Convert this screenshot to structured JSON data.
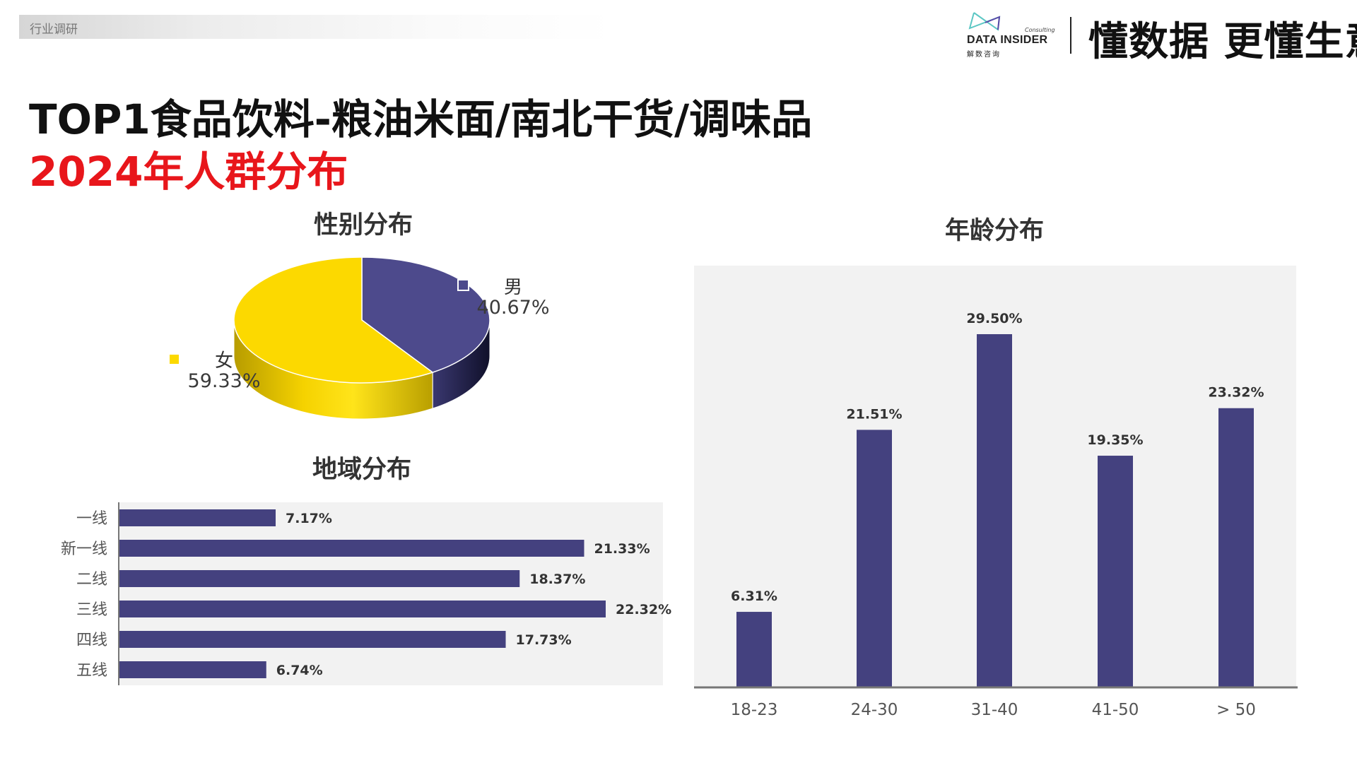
{
  "header": {
    "tag": "行业调研",
    "logo": {
      "name": "DATA INSIDER",
      "sub": "Consulting",
      "cn": "解数咨询"
    },
    "slogan": "懂数据 更懂生意"
  },
  "title": {
    "line1": "TOP1食品饮料-粮油米面/南北干货/调味品",
    "line2": "2024年人群分布"
  },
  "colors": {
    "navy": "#44417f",
    "yellow": "#fcd900",
    "title_red": "#e8161b",
    "panel": "#f2f2f2"
  },
  "chart_data": [
    {
      "type": "pie",
      "title": "性别分布",
      "style": "3d",
      "slices": [
        {
          "label": "男",
          "value": 40.67,
          "display": "40.67%",
          "color": "#4d4a8c"
        },
        {
          "label": "女",
          "value": 59.33,
          "display": "59.33%",
          "color": "#fcd900"
        }
      ]
    },
    {
      "type": "bar",
      "orientation": "horizontal",
      "title": "地域分布",
      "categories": [
        "一线",
        "新一线",
        "二线",
        "三线",
        "四线",
        "五线"
      ],
      "values": [
        7.17,
        21.33,
        18.37,
        22.32,
        17.73,
        6.74
      ],
      "labels": [
        "7.17%",
        "21.33%",
        "18.37%",
        "22.32%",
        "17.73%",
        "6.74%"
      ],
      "unit": "%",
      "color": "#44417f"
    },
    {
      "type": "bar",
      "orientation": "vertical",
      "title": "年龄分布",
      "categories": [
        "18-23",
        "24-30",
        "31-40",
        "41-50",
        "> 50"
      ],
      "values": [
        6.31,
        21.51,
        29.5,
        19.35,
        23.32
      ],
      "labels": [
        "6.31%",
        "21.51%",
        "29.50%",
        "19.35%",
        "23.32%"
      ],
      "unit": "%",
      "color": "#44417f"
    }
  ]
}
